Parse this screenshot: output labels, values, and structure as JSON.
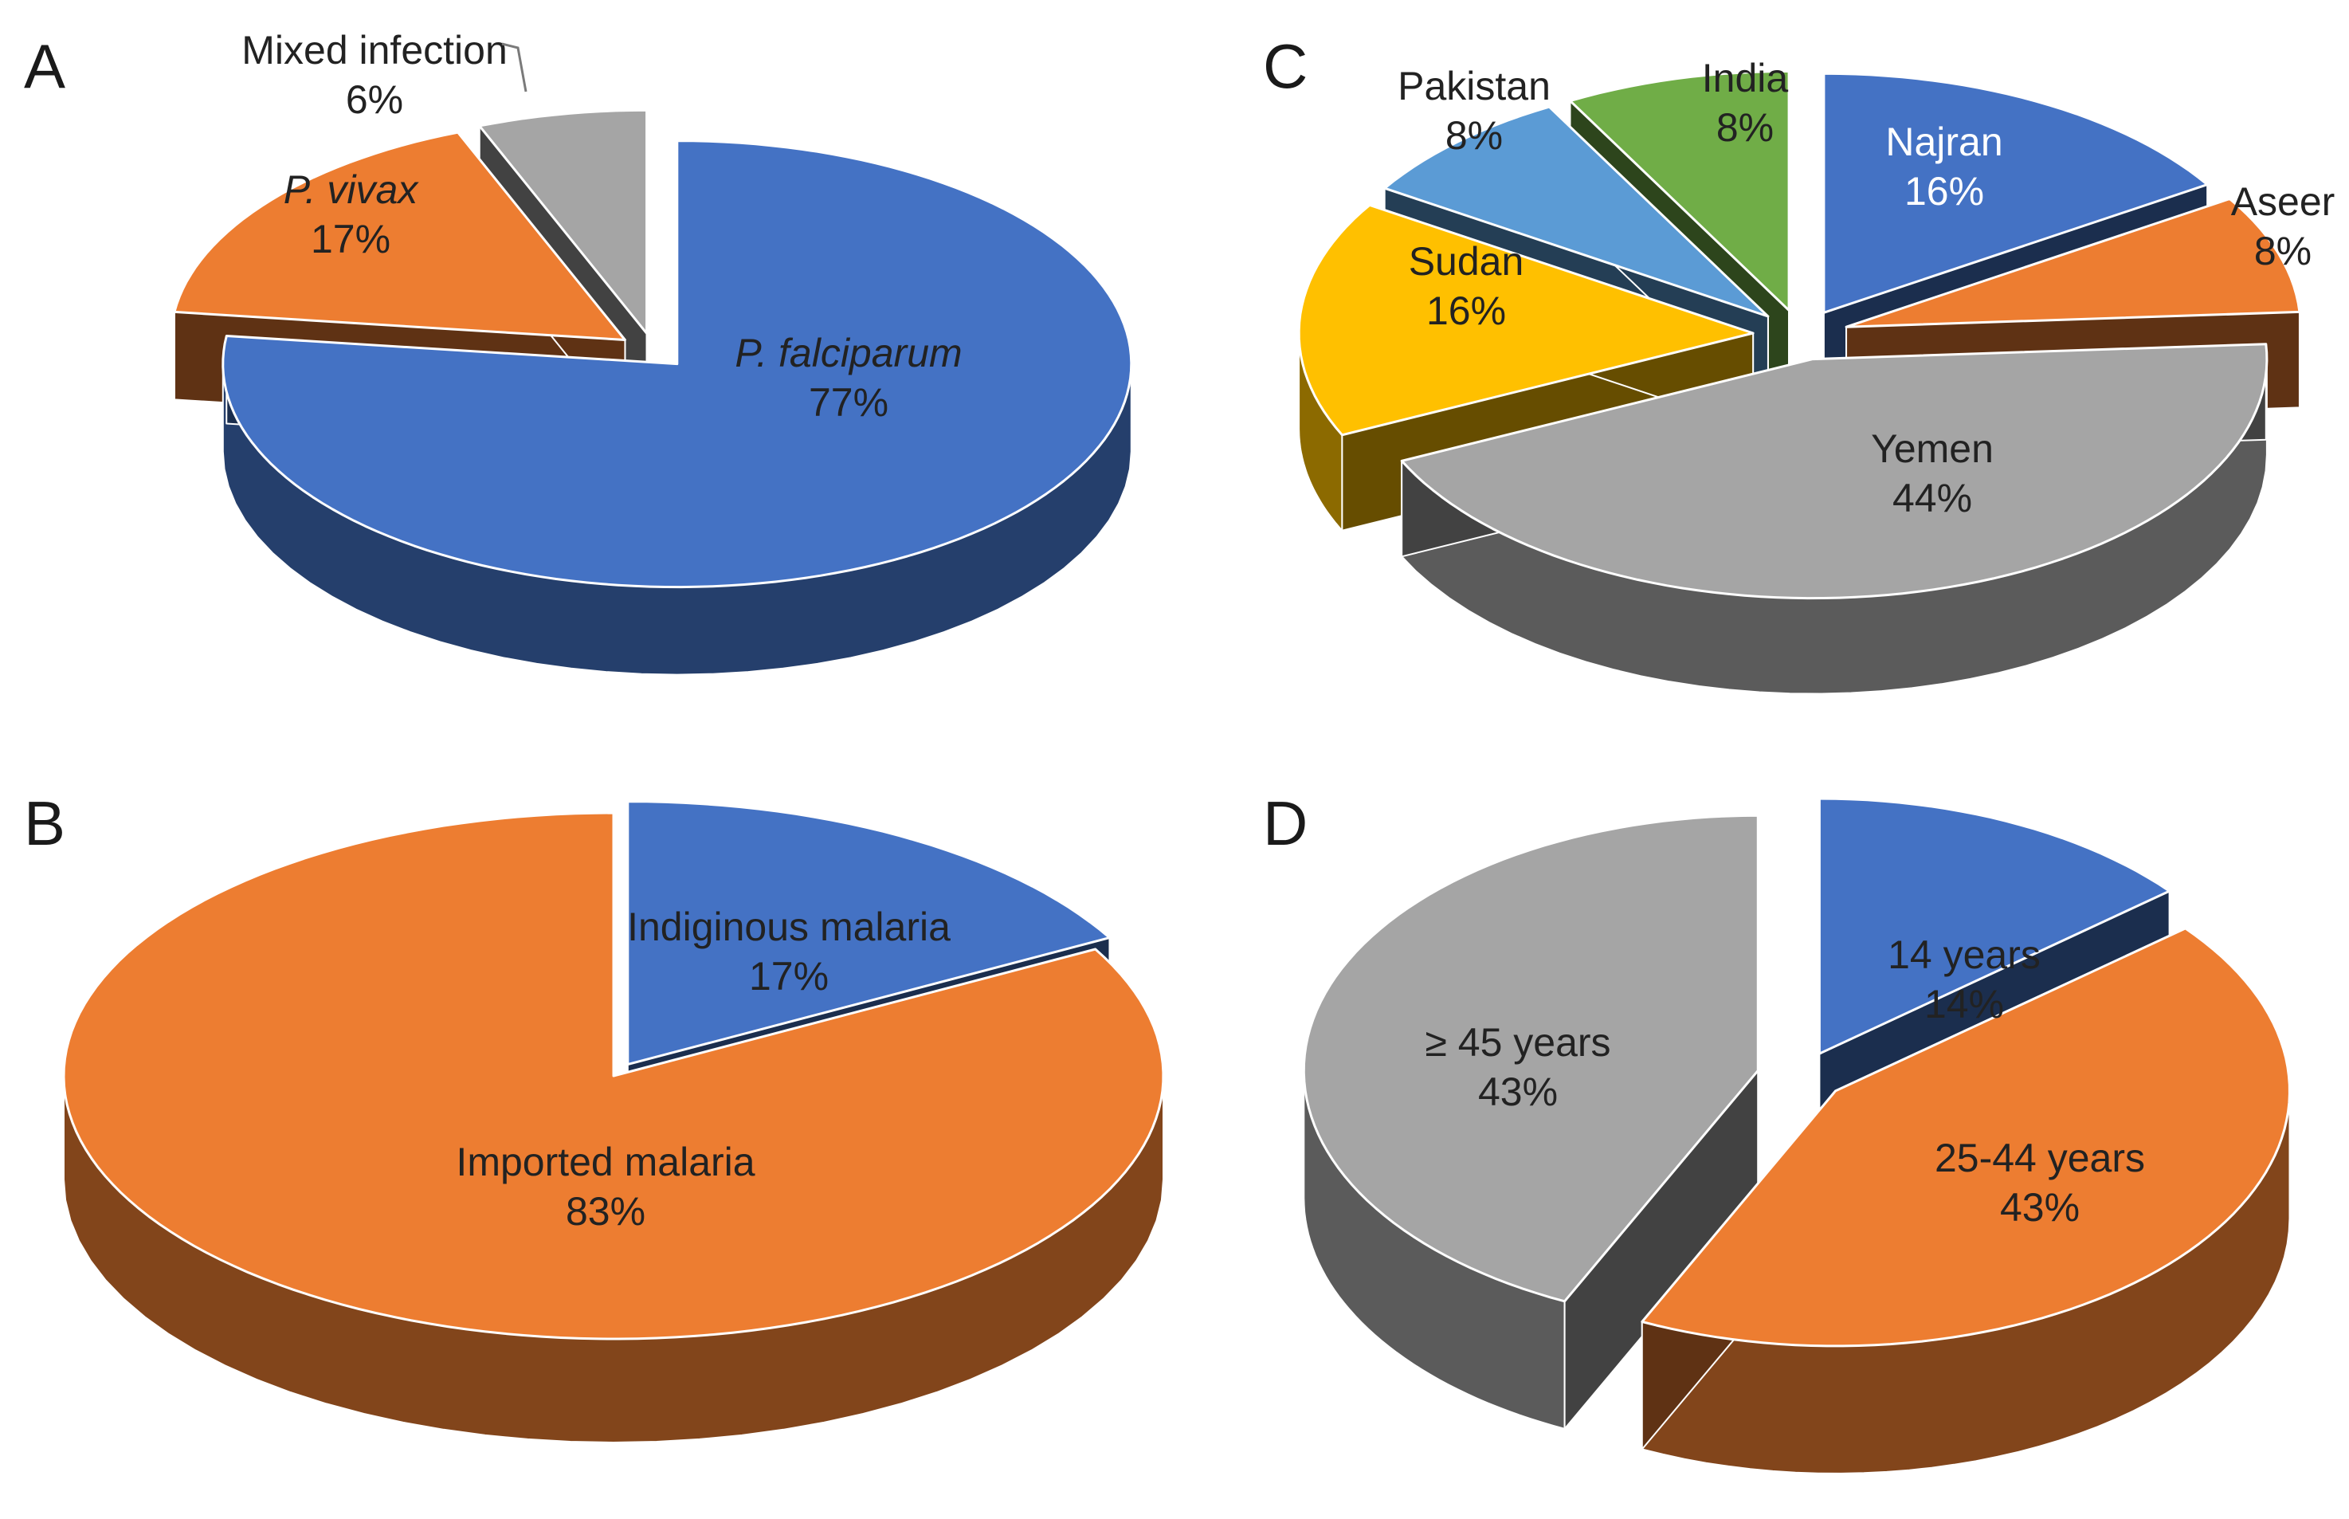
{
  "figure": {
    "panels": [
      "A",
      "B",
      "C",
      "D"
    ]
  },
  "chart_data": [
    {
      "panel": "A",
      "type": "pie",
      "title": "",
      "unit": "%",
      "slices": [
        {
          "label": "P. falciparum",
          "value": 77,
          "value_label": "77%",
          "color": "#4472c4",
          "italic": true,
          "exploded": true
        },
        {
          "label": "P. vivax",
          "value": 17,
          "value_label": "17%",
          "color": "#ed7d31",
          "italic": true,
          "exploded": true
        },
        {
          "label": "Mixed infection",
          "value": 6,
          "value_label": "6%",
          "color": "#a5a5a5",
          "italic": false,
          "exploded": true
        }
      ]
    },
    {
      "panel": "B",
      "type": "pie",
      "title": "",
      "unit": "%",
      "slices": [
        {
          "label": "Indiginous malaria",
          "value": 17,
          "value_label": "17%",
          "color": "#4472c4",
          "italic": false,
          "exploded": true
        },
        {
          "label": "Imported malaria",
          "value": 83,
          "value_label": "83%",
          "color": "#ed7d31",
          "italic": false,
          "exploded": false
        }
      ]
    },
    {
      "panel": "C",
      "type": "pie",
      "title": "",
      "unit": "%",
      "slices": [
        {
          "label": "Najran",
          "value": 16,
          "value_label": "16%",
          "color": "#4472c4",
          "italic": false,
          "exploded": true
        },
        {
          "label": "Aseer",
          "value": 8,
          "value_label": "8%",
          "color": "#ed7d31",
          "italic": false,
          "exploded": true
        },
        {
          "label": "Yemen",
          "value": 44,
          "value_label": "44%",
          "color": "#a5a5a5",
          "italic": false,
          "exploded": true
        },
        {
          "label": "Sudan",
          "value": 16,
          "value_label": "16%",
          "color": "#ffc000",
          "italic": false,
          "exploded": true
        },
        {
          "label": "Pakistan",
          "value": 8,
          "value_label": "8%",
          "color": "#5b9bd5",
          "italic": false,
          "exploded": true
        },
        {
          "label": "India",
          "value": 8,
          "value_label": "8%",
          "color": "#70ad47",
          "italic": false,
          "exploded": true
        }
      ]
    },
    {
      "panel": "D",
      "type": "pie",
      "title": "",
      "unit": "%",
      "slices": [
        {
          "label": "14 years",
          "value": 14,
          "value_label": "14%",
          "color": "#4472c4",
          "italic": false,
          "exploded": true
        },
        {
          "label": "25-44 years",
          "value": 43,
          "value_label": "43%",
          "color": "#ed7d31",
          "italic": false,
          "exploded": true
        },
        {
          "label": "≥ 45 years",
          "value": 43,
          "value_label": "43%",
          "color": "#a5a5a5",
          "italic": false,
          "exploded": true
        }
      ]
    }
  ]
}
